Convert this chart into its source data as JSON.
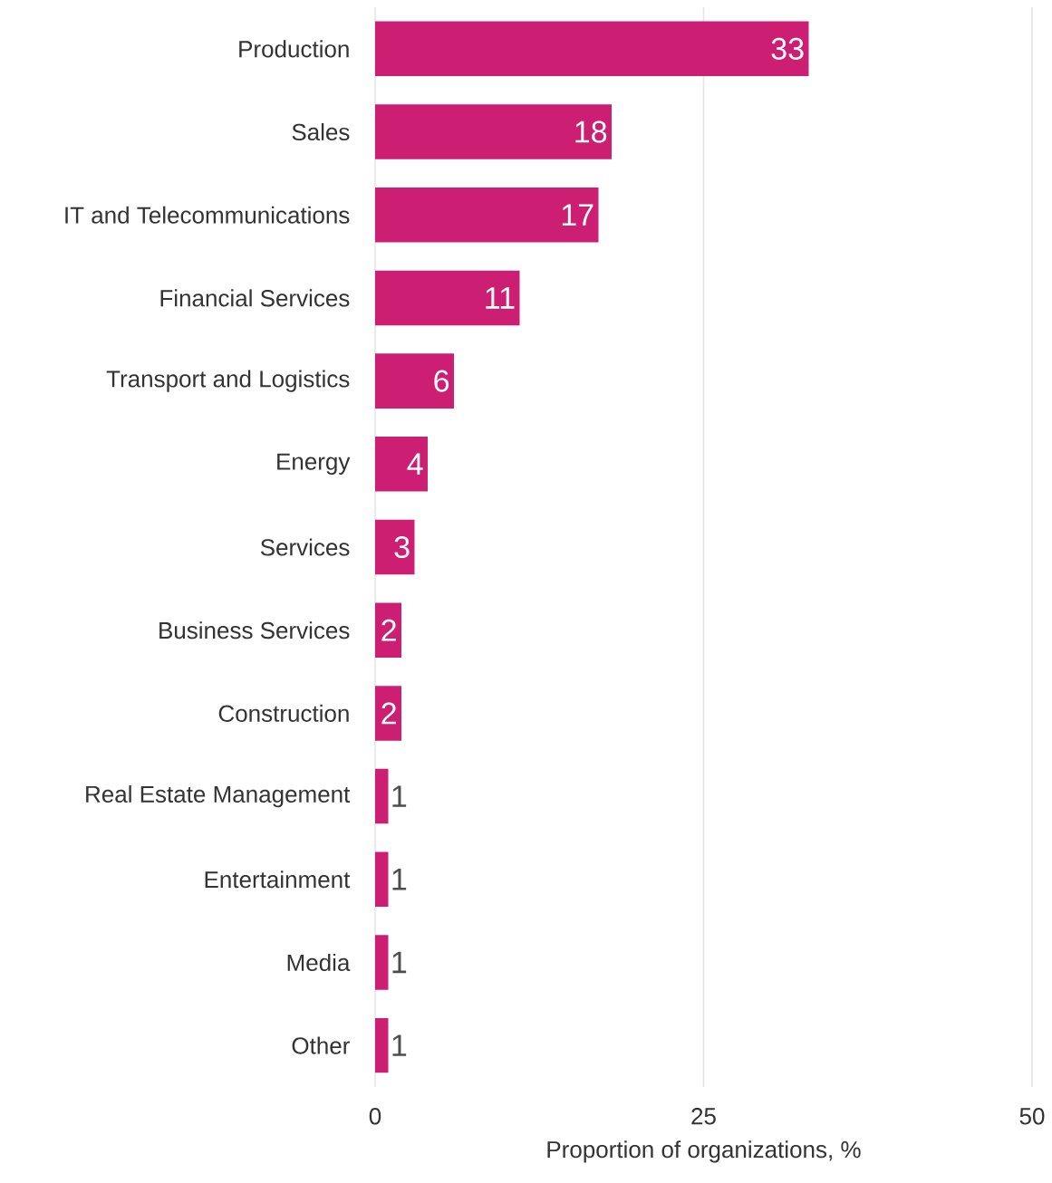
{
  "chart_data": {
    "type": "bar",
    "orientation": "horizontal",
    "categories": [
      "Production",
      "Sales",
      "IT and Telecommunications",
      "Financial Services",
      "Transport and Logistics",
      "Energy",
      "Services",
      "Business Services",
      "Construction",
      "Real Estate Management",
      "Entertainment",
      "Media",
      "Other"
    ],
    "values": [
      33,
      18,
      17,
      11,
      6,
      4,
      3,
      2,
      2,
      1,
      1,
      1,
      1
    ],
    "color": "#cc1f73",
    "xlim": [
      0,
      50
    ],
    "xticks": [
      0,
      25,
      50
    ],
    "grid": "x",
    "data_labels": true,
    "xlabel": "Proportion of organizations, %"
  }
}
